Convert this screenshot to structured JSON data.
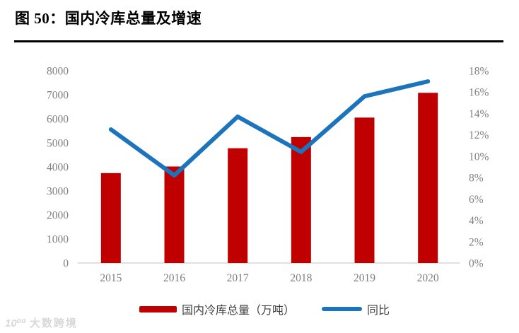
{
  "header": {
    "title": "图 50：国内冷库总量及增速"
  },
  "chart_data": {
    "type": "bar+line combo",
    "title": "图 50：国内冷库总量及增速",
    "categories": [
      "2015",
      "2016",
      "2017",
      "2018",
      "2019",
      "2020"
    ],
    "series": [
      {
        "name": "国内冷库总量（万吨）",
        "type": "bar",
        "axis": "left",
        "color": "#c00000",
        "values": [
          3740,
          4015,
          4775,
          5240,
          6050,
          7080
        ]
      },
      {
        "name": "同比",
        "type": "line",
        "axis": "right",
        "color": "#1b74bc",
        "values": [
          12.5,
          8.2,
          13.7,
          10.4,
          15.6,
          17.0
        ]
      }
    ],
    "left_axis": {
      "min": 0,
      "max": 8000,
      "step": 1000,
      "tick_labels": [
        "0",
        "1000",
        "2000",
        "3000",
        "4000",
        "5000",
        "6000",
        "7000",
        "8000"
      ]
    },
    "right_axis": {
      "min": 0,
      "max": 18,
      "step": 2,
      "suffix": "%",
      "tick_labels": [
        "0%",
        "2%",
        "4%",
        "6%",
        "8%",
        "10%",
        "12%",
        "14%",
        "16%",
        "18%"
      ]
    },
    "grid": false,
    "legend_position": "bottom"
  },
  "legend": {
    "bar_label": "国内冷库总量（万吨）",
    "line_label": "同比"
  },
  "watermark": {
    "logo": "10⁰⁰",
    "text": "大数跨境"
  },
  "colors": {
    "bar": "#c00000",
    "line": "#1b74bc",
    "axis_text": "#7f7f7f",
    "axis_line": "#d6d6d6",
    "title": "#000000",
    "legend_text": "#404040",
    "watermark": "#d8d8d8"
  }
}
